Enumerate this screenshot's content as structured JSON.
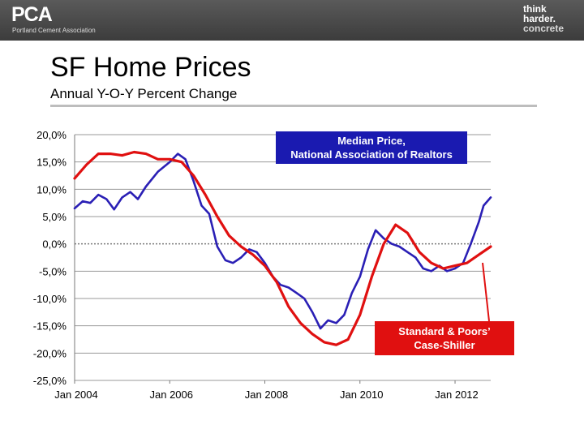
{
  "header": {
    "logo_text": "PCA",
    "logo_subtitle": "Portland Cement Association",
    "tagline": [
      "think",
      "harder.",
      "concrete"
    ]
  },
  "slide": {
    "title": "SF Home Prices",
    "subtitle": "Annual Y-O-Y Percent Change"
  },
  "chart_data": {
    "type": "line",
    "y_ticks": [
      "20,0%",
      "15,0%",
      "10,0%",
      "5,0%",
      "0,0%",
      "-5,0%",
      "-10,0%",
      "-15,0%",
      "-20,0%",
      "-25,0%"
    ],
    "x_ticks": [
      "Jan 2004",
      "Jan 2006",
      "Jan 2008",
      "Jan 2010",
      "Jan 2012"
    ],
    "ylim": [
      -25,
      20
    ],
    "xlim": [
      2004.0,
      2012.75
    ],
    "grid": true,
    "series": [
      {
        "name": "Median Price, National Association of Realtors",
        "color": "#2a1fb5",
        "points": [
          [
            2004.0,
            6.5
          ],
          [
            2004.17,
            7.8
          ],
          [
            2004.33,
            7.5
          ],
          [
            2004.5,
            9.0
          ],
          [
            2004.67,
            8.2
          ],
          [
            2004.83,
            6.3
          ],
          [
            2005.0,
            8.5
          ],
          [
            2005.17,
            9.5
          ],
          [
            2005.33,
            8.2
          ],
          [
            2005.5,
            10.5
          ],
          [
            2005.75,
            13.2
          ],
          [
            2006.0,
            15.0
          ],
          [
            2006.17,
            16.5
          ],
          [
            2006.33,
            15.5
          ],
          [
            2006.5,
            11.5
          ],
          [
            2006.67,
            7.0
          ],
          [
            2006.83,
            5.5
          ],
          [
            2007.0,
            -0.5
          ],
          [
            2007.17,
            -3.0
          ],
          [
            2007.33,
            -3.5
          ],
          [
            2007.5,
            -2.5
          ],
          [
            2007.67,
            -1.0
          ],
          [
            2007.83,
            -1.5
          ],
          [
            2008.0,
            -3.5
          ],
          [
            2008.17,
            -6.0
          ],
          [
            2008.33,
            -7.5
          ],
          [
            2008.5,
            -8.0
          ],
          [
            2008.67,
            -9.0
          ],
          [
            2008.83,
            -10.0
          ],
          [
            2009.0,
            -12.5
          ],
          [
            2009.17,
            -15.5
          ],
          [
            2009.33,
            -14.0
          ],
          [
            2009.5,
            -14.5
          ],
          [
            2009.67,
            -13.0
          ],
          [
            2009.83,
            -9.0
          ],
          [
            2010.0,
            -6.0
          ],
          [
            2010.17,
            -1.0
          ],
          [
            2010.33,
            2.5
          ],
          [
            2010.5,
            1.0
          ],
          [
            2010.67,
            0.0
          ],
          [
            2010.83,
            -0.5
          ],
          [
            2011.0,
            -1.5
          ],
          [
            2011.17,
            -2.5
          ],
          [
            2011.33,
            -4.5
          ],
          [
            2011.5,
            -5.0
          ],
          [
            2011.67,
            -4.0
          ],
          [
            2011.83,
            -5.0
          ],
          [
            2012.0,
            -4.5
          ],
          [
            2012.17,
            -3.5
          ],
          [
            2012.33,
            0.0
          ],
          [
            2012.5,
            4.0
          ],
          [
            2012.6,
            7.0
          ],
          [
            2012.75,
            8.5
          ]
        ]
      },
      {
        "name": "Standard & Poors' Case-Shiller",
        "color": "#e01010",
        "points": [
          [
            2004.0,
            12.0
          ],
          [
            2004.25,
            14.5
          ],
          [
            2004.5,
            16.5
          ],
          [
            2004.75,
            16.5
          ],
          [
            2005.0,
            16.2
          ],
          [
            2005.25,
            16.8
          ],
          [
            2005.5,
            16.5
          ],
          [
            2005.75,
            15.5
          ],
          [
            2006.0,
            15.5
          ],
          [
            2006.25,
            15.0
          ],
          [
            2006.5,
            12.5
          ],
          [
            2006.75,
            9.0
          ],
          [
            2007.0,
            5.0
          ],
          [
            2007.25,
            1.5
          ],
          [
            2007.5,
            -0.5
          ],
          [
            2007.75,
            -2.0
          ],
          [
            2008.0,
            -4.0
          ],
          [
            2008.25,
            -7.0
          ],
          [
            2008.5,
            -11.5
          ],
          [
            2008.75,
            -14.5
          ],
          [
            2009.0,
            -16.5
          ],
          [
            2009.25,
            -18.0
          ],
          [
            2009.5,
            -18.5
          ],
          [
            2009.75,
            -17.5
          ],
          [
            2010.0,
            -13.0
          ],
          [
            2010.25,
            -6.0
          ],
          [
            2010.5,
            0.0
          ],
          [
            2010.75,
            3.5
          ],
          [
            2011.0,
            2.0
          ],
          [
            2011.25,
            -1.5
          ],
          [
            2011.5,
            -3.5
          ],
          [
            2011.75,
            -4.5
          ],
          [
            2012.0,
            -4.0
          ],
          [
            2012.25,
            -3.5
          ],
          [
            2012.5,
            -2.0
          ],
          [
            2012.75,
            -0.5
          ]
        ]
      }
    ],
    "annotations": {
      "blue_label_lines": [
        "Median Price,",
        "National Association of Realtors"
      ],
      "red_label_lines": [
        "Standard & Poors’",
        "Case-Shiller"
      ]
    }
  }
}
